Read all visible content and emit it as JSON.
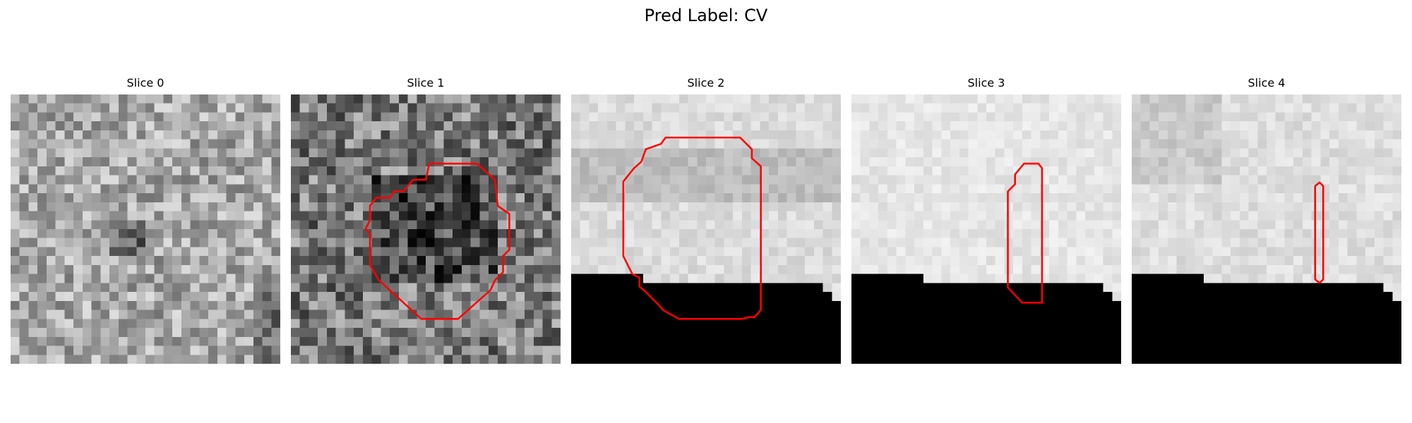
{
  "figure": {
    "title": "Pred Label: CV"
  },
  "panels": [
    {
      "title": "Slice 0",
      "contour": false
    },
    {
      "title": "Slice 1",
      "contour": true
    },
    {
      "title": "Slice 2",
      "contour": true
    },
    {
      "title": "Slice 3",
      "contour": true
    },
    {
      "title": "Slice 4",
      "contour": true
    }
  ],
  "colors": {
    "contour": "#ff0000",
    "masked_region": "#000000",
    "background": "#ffffff"
  }
}
